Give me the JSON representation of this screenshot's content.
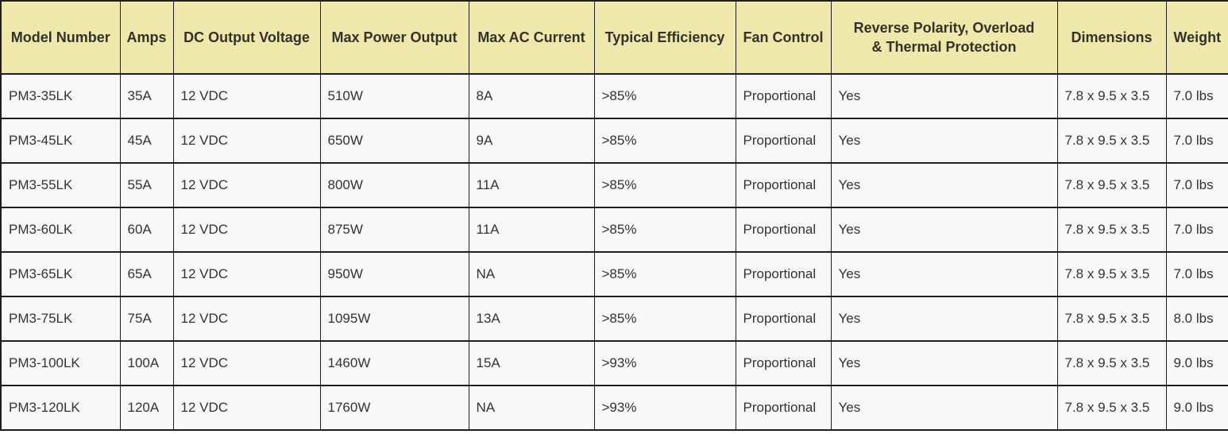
{
  "table": {
    "name": "power-supply-spec-table",
    "columns": [
      {
        "key": "model-number",
        "label": "Model Number"
      },
      {
        "key": "amps",
        "label": "Amps"
      },
      {
        "key": "dc-output-voltage",
        "label": "DC Output Voltage"
      },
      {
        "key": "max-power-output",
        "label": "Max Power Output"
      },
      {
        "key": "max-ac-current",
        "label": "Max AC Current"
      },
      {
        "key": "typical-efficiency",
        "label": "Typical Efficiency"
      },
      {
        "key": "fan-control",
        "label": "Fan Control"
      },
      {
        "key": "protection",
        "label": "Reverse Polarity, Overload\n& Thermal Protection"
      },
      {
        "key": "dimensions",
        "label": "Dimensions"
      },
      {
        "key": "weight",
        "label": "Weight"
      }
    ],
    "rows": [
      [
        "PM3-35LK",
        "35A",
        "12 VDC",
        "510W",
        "8A",
        ">85%",
        "Proportional",
        "Yes",
        "7.8 x 9.5 x 3.5",
        "7.0 lbs"
      ],
      [
        "PM3-45LK",
        "45A",
        "12 VDC",
        "650W",
        "9A",
        ">85%",
        "Proportional",
        "Yes",
        "7.8 x 9.5 x 3.5",
        "7.0 lbs"
      ],
      [
        "PM3-55LK",
        "55A",
        "12 VDC",
        "800W",
        "11A",
        ">85%",
        "Proportional",
        "Yes",
        "7.8 x 9.5 x 3.5",
        "7.0 lbs"
      ],
      [
        "PM3-60LK",
        "60A",
        "12 VDC",
        "875W",
        "11A",
        ">85%",
        "Proportional",
        "Yes",
        "7.8 x 9.5 x 3.5",
        "7.0 lbs"
      ],
      [
        "PM3-65LK",
        "65A",
        "12 VDC",
        "950W",
        "NA",
        ">85%",
        "Proportional",
        "Yes",
        "7.8 x 9.5 x 3.5",
        "7.0 lbs"
      ],
      [
        "PM3-75LK",
        "75A",
        "12 VDC",
        "1095W",
        "13A",
        ">85%",
        "Proportional",
        "Yes",
        "7.8 x 9.5 x 3.5",
        "8.0 lbs"
      ],
      [
        "PM3-100LK",
        "100A",
        "12 VDC",
        "1460W",
        "15A",
        ">93%",
        "Proportional",
        "Yes",
        "7.8 x 9.5 x 3.5",
        "9.0 lbs"
      ],
      [
        "PM3-120LK",
        "120A",
        "12 VDC",
        "1760W",
        "NA",
        ">93%",
        "Proportional",
        "Yes",
        "7.8 x 9.5 x 3.5",
        "9.0 lbs"
      ]
    ],
    "colors": {
      "header_bg": "#eee8aa",
      "header_text": "#33312a",
      "body_bg": "#f8f8f8",
      "body_text": "#333333",
      "border": "#1e1e1e"
    }
  }
}
